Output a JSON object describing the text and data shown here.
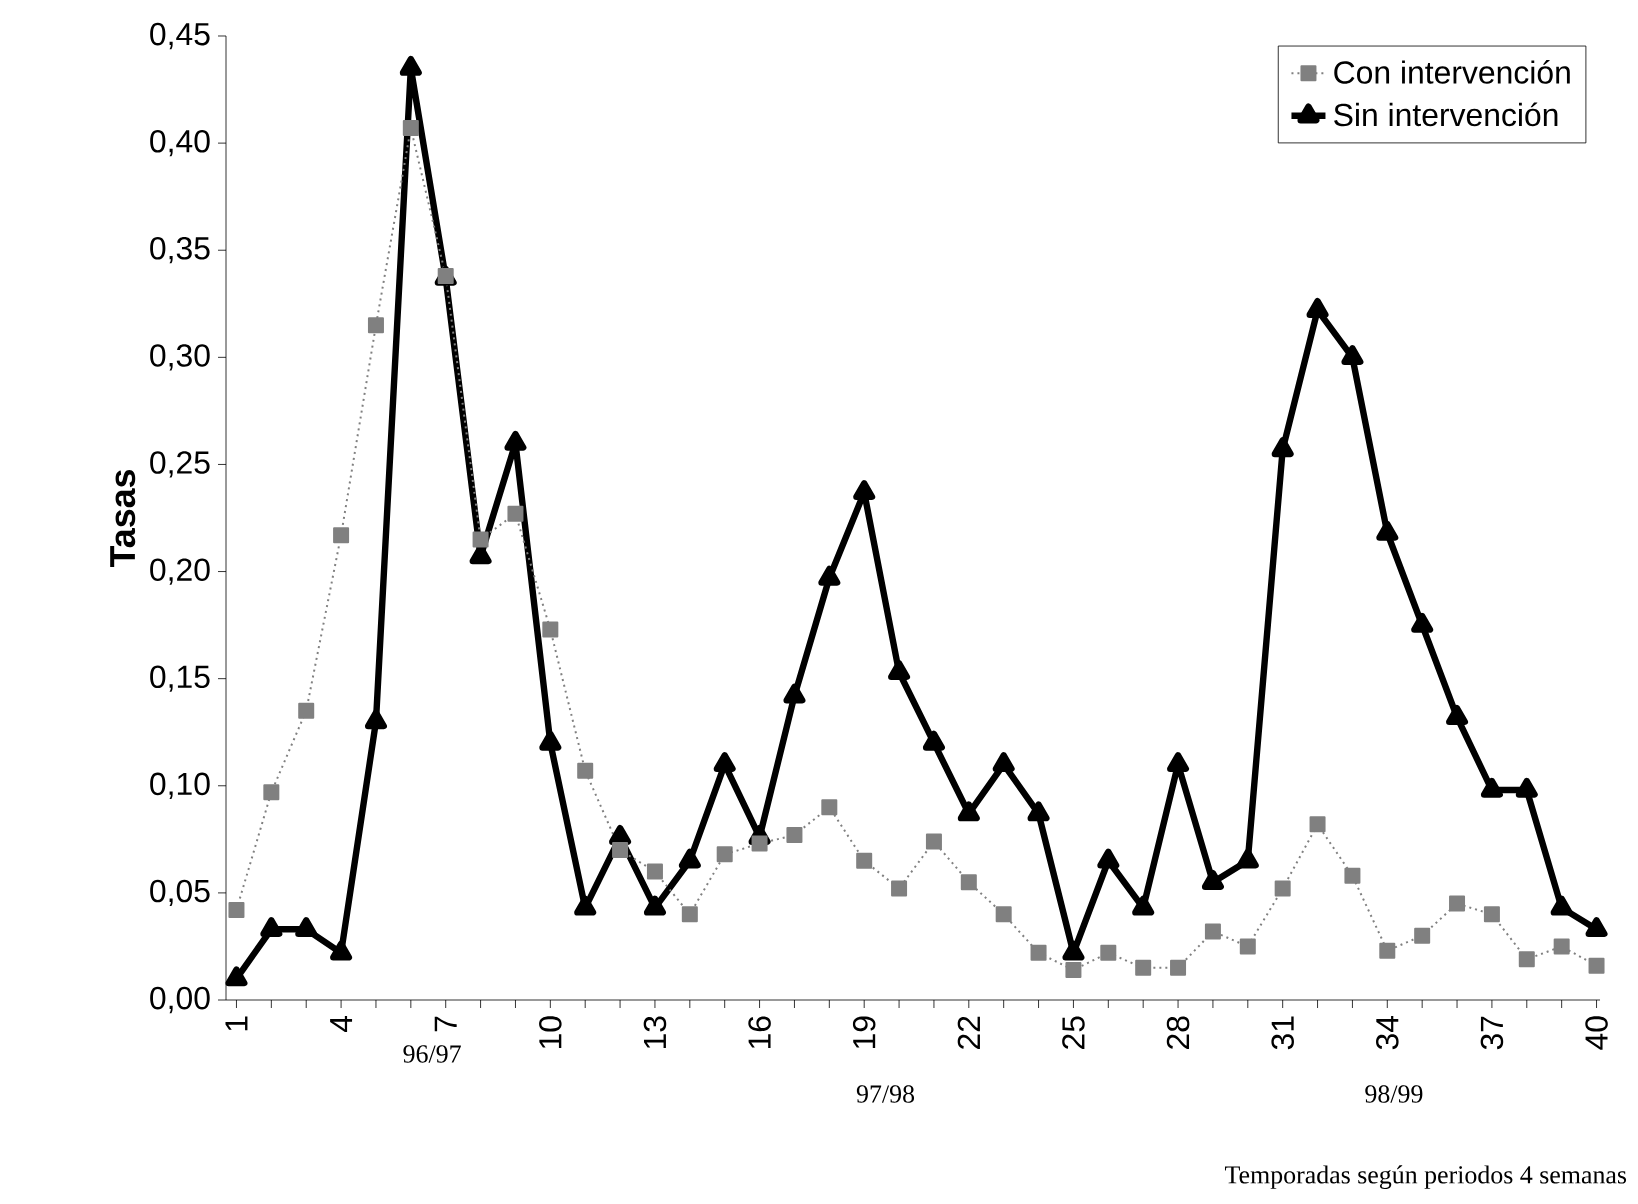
{
  "chart_data": {
    "type": "line",
    "ylabel": "Tasas",
    "xlabel": "Temporadas según periodos 4 semanas",
    "categories": [
      "1",
      null,
      null,
      "4",
      null,
      null,
      "7",
      null,
      null,
      "10",
      null,
      null,
      "13",
      null,
      null,
      "16",
      null,
      null,
      "19",
      null,
      null,
      "22",
      null,
      null,
      "25",
      null,
      null,
      "28",
      null,
      null,
      "31",
      null,
      null,
      "34",
      null,
      null,
      "37",
      null,
      null,
      "40"
    ],
    "series": [
      {
        "name": "Con intervención",
        "color": "#808080",
        "marker": "square",
        "line_style": "dotted",
        "values": [
          0.042,
          0.097,
          0.135,
          0.217,
          0.315,
          0.407,
          0.338,
          0.215,
          0.227,
          0.173,
          0.107,
          0.07,
          0.06,
          0.04,
          0.068,
          0.073,
          0.077,
          0.09,
          0.065,
          0.052,
          0.074,
          0.055,
          0.04,
          0.022,
          0.014,
          0.022,
          0.015,
          0.015,
          0.032,
          0.025,
          0.052,
          0.082,
          0.058,
          0.023,
          0.03,
          0.045,
          0.04,
          0.019,
          0.025,
          0.016
        ]
      },
      {
        "name": "Sin intervención",
        "color": "#000000",
        "marker": "triangle",
        "line_style": "solid",
        "values": [
          0.01,
          0.033,
          0.033,
          0.022,
          0.13,
          0.435,
          0.337,
          0.207,
          0.26,
          0.12,
          0.043,
          0.076,
          0.043,
          0.065,
          0.11,
          0.076,
          0.142,
          0.197,
          0.237,
          0.153,
          0.12,
          0.087,
          0.11,
          0.087,
          0.022,
          0.065,
          0.043,
          0.11,
          0.055,
          0.065,
          0.257,
          0.322,
          0.3,
          0.218,
          0.175,
          0.132,
          0.098,
          0.098,
          0.043,
          0.033
        ]
      }
    ],
    "ylim": [
      0,
      0.45
    ],
    "yticks": [
      {
        "value": 0,
        "label": "0,00"
      },
      {
        "value": 0.05,
        "label": "0,05"
      },
      {
        "value": 0.1,
        "label": "0,10"
      },
      {
        "value": 0.15,
        "label": "0,15"
      },
      {
        "value": 0.2,
        "label": "0,20"
      },
      {
        "value": 0.25,
        "label": "0,25"
      },
      {
        "value": 0.3,
        "label": "0,30"
      },
      {
        "value": 0.35,
        "label": "0,35"
      },
      {
        "value": 0.4,
        "label": "0,40"
      },
      {
        "value": 0.45,
        "label": "0,45"
      }
    ],
    "annotations": [
      "96/97",
      "97/98",
      "98/99"
    ],
    "legend": "top right",
    "grid": false
  }
}
